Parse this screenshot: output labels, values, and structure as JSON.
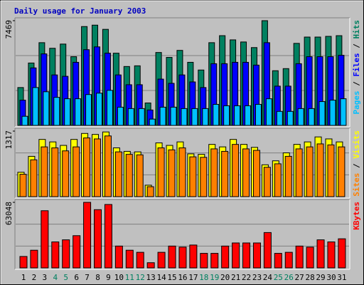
{
  "chart_data": {
    "type": "bar",
    "title": "Daily usage for January 2003",
    "categories": [
      1,
      2,
      3,
      4,
      5,
      6,
      7,
      8,
      9,
      10,
      11,
      12,
      13,
      14,
      15,
      16,
      17,
      18,
      19,
      20,
      21,
      22,
      23,
      24,
      25,
      26,
      27,
      28,
      29,
      30,
      31
    ],
    "highlight_categories": [
      4,
      5,
      11,
      12,
      18,
      19,
      25,
      26
    ],
    "highlight_color": "#008060",
    "label_color": "#000000",
    "panels": [
      {
        "ylim": [
          0,
          7469
        ],
        "yticks": [
          7469
        ],
        "series": [
          {
            "name": "Hits",
            "color": "#008060",
            "values": [
              2700,
              4450,
              5900,
              5500,
              5800,
              4900,
              7050,
              7150,
              6850,
              5150,
              4200,
              4250,
              1600,
              5200,
              4850,
              5350,
              4500,
              3950,
              5900,
              6400,
              6100,
              5950,
              5550,
              7469,
              3900,
              4050,
              5850,
              6300,
              6300,
              6350,
              6400
            ]
          },
          {
            "name": "Files",
            "color": "#0000ff",
            "values": [
              1800,
              4100,
              5100,
              3600,
              3500,
              4500,
              5400,
              5600,
              5150,
              3600,
              2900,
              2900,
              1100,
              3300,
              3000,
              3600,
              3100,
              2700,
              4400,
              4400,
              4500,
              4500,
              4300,
              5900,
              2800,
              2800,
              4400,
              4900,
              4900,
              4900,
              5000
            ]
          },
          {
            "name": "Pages",
            "color": "#00c0ff",
            "values": [
              650,
              2700,
              2400,
              2000,
              1900,
              1900,
              2200,
              2300,
              2500,
              1300,
              1200,
              1200,
              450,
              1300,
              1300,
              1200,
              1200,
              1200,
              1500,
              1400,
              1400,
              1400,
              1500,
              1900,
              1000,
              1000,
              1200,
              1200,
              1700,
              1800,
              1900
            ]
          }
        ]
      },
      {
        "ylim": [
          0,
          1317
        ],
        "yticks": [
          1317
        ],
        "series": [
          {
            "name": "Visits",
            "color": "#ffff00",
            "values": [
              490,
              810,
              1150,
              1100,
              1030,
              1150,
              1270,
              1250,
              1300,
              980,
              910,
              900,
              230,
              1080,
              1030,
              1100,
              860,
              850,
              1050,
              1000,
              1150,
              1050,
              990,
              640,
              720,
              880,
              1050,
              1100,
              1200,
              1160,
              1100
            ]
          },
          {
            "name": "Sites",
            "color": "#ff8000",
            "values": [
              450,
              740,
              1000,
              980,
              920,
              1000,
              1180,
              1160,
              1220,
              900,
              850,
              840,
              200,
              980,
              940,
              980,
              800,
              790,
              960,
              910,
              1050,
              960,
              930,
              590,
              660,
              810,
              960,
              1000,
              1060,
              1040,
              1000
            ]
          }
        ]
      },
      {
        "ylim": [
          0,
          63048
        ],
        "yticks": [
          63048
        ],
        "series": [
          {
            "name": "KBytes",
            "color": "#ff0000",
            "values": [
              11000,
              17000,
              55000,
              25000,
              27000,
              31000,
              63048,
              56000,
              61000,
              21000,
              17000,
              15000,
              5000,
              15000,
              21000,
              20000,
              22000,
              14000,
              14000,
              21000,
              24000,
              24000,
              24000,
              34000,
              14000,
              15000,
              21000,
              20000,
              27000,
              25000,
              28000
            ]
          }
        ]
      }
    ]
  }
}
